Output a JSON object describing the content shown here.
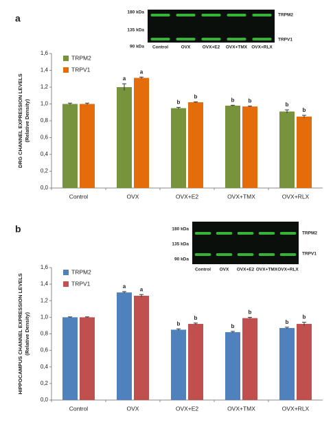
{
  "chart_data": [
    {
      "type": "bar",
      "panel_label": "a",
      "ylabel": [
        "DRG CHANNEL EXPRESSION LEVELS",
        "(Relative Density)"
      ],
      "categories": [
        "Control",
        "OVX",
        "OVX+E2",
        "OVX+TMX",
        "OVX+RLX"
      ],
      "series": [
        {
          "name": "TRPM2",
          "color": "#77933c",
          "values": [
            1.0,
            1.2,
            0.95,
            0.98,
            0.91
          ],
          "errors": [
            0.01,
            0.04,
            0.01,
            0.005,
            0.02
          ],
          "letters": [
            null,
            "a",
            "b",
            "b",
            "b"
          ]
        },
        {
          "name": "TRPV1",
          "color": "#e46c0a",
          "values": [
            1.0,
            1.31,
            1.02,
            0.97,
            0.85
          ],
          "errors": [
            0.01,
            0.01,
            0.005,
            0.005,
            0.015
          ],
          "letters": [
            null,
            "a",
            "b",
            "b",
            "b"
          ]
        }
      ],
      "ylim": [
        0,
        1.6
      ],
      "yticks": [
        {
          "value": 0,
          "label": "0,0"
        },
        {
          "value": 0.2,
          "label": "0,2"
        },
        {
          "value": 0.4,
          "label": "0,4"
        },
        {
          "value": 0.6,
          "label": "0,6"
        },
        {
          "value": 0.8,
          "label": "0,8"
        },
        {
          "value": 1.0,
          "label": "1,0"
        },
        {
          "value": 1.2,
          "label": "1,2"
        },
        {
          "value": 1.4,
          "label": "1,4"
        },
        {
          "value": 1.6,
          "label": "1,6"
        }
      ],
      "legend": "top-left",
      "blot": {
        "markers": [
          "180 kDa",
          "135 kDa",
          "90 kDa"
        ],
        "bands": [
          "TRPM2",
          "TRPV1"
        ],
        "lanes": [
          "Control",
          "OVX",
          "OVX+E2",
          "OVX+TMX",
          "OVX+RLX"
        ]
      }
    },
    {
      "type": "bar",
      "panel_label": "b",
      "ylabel": [
        "HIPPOCAMPUS CHANNEL EXPRESSION LEVELS",
        "(Relative Density)"
      ],
      "categories": [
        "Control",
        "OVX",
        "OVX+E2",
        "OVX+TMX",
        "OVX+RLX"
      ],
      "series": [
        {
          "name": "TRPM2",
          "color": "#4f81bd",
          "values": [
            1.0,
            1.3,
            0.85,
            0.82,
            0.87
          ],
          "errors": [
            0.005,
            0.01,
            0.01,
            0.01,
            0.01
          ],
          "letters": [
            null,
            "a",
            "b",
            "b",
            "b"
          ]
        },
        {
          "name": "TRPV1",
          "color": "#c0504d",
          "values": [
            1.0,
            1.26,
            0.92,
            0.99,
            0.92
          ],
          "errors": [
            0.005,
            0.015,
            0.01,
            0.01,
            0.02
          ],
          "letters": [
            null,
            "a",
            "b",
            "b",
            "b"
          ]
        }
      ],
      "ylim": [
        0,
        1.6
      ],
      "yticks": [
        {
          "value": 0,
          "label": "0,0"
        },
        {
          "value": 0.2,
          "label": "0,2"
        },
        {
          "value": 0.4,
          "label": "0,4"
        },
        {
          "value": 0.6,
          "label": "0,6"
        },
        {
          "value": 0.8,
          "label": "0,8"
        },
        {
          "value": 1.0,
          "label": "1,0"
        },
        {
          "value": 1.2,
          "label": "1,2"
        },
        {
          "value": 1.4,
          "label": "1,4"
        },
        {
          "value": 1.6,
          "label": "1,6"
        }
      ],
      "legend": "top-left",
      "blot": {
        "markers": [
          "180 kDa",
          "135 kDa",
          "90 kDa"
        ],
        "bands": [
          "TRPM2",
          "TRPV1"
        ],
        "lanes": [
          "Control",
          "OVX",
          "OVX+E2",
          "OVX+TMX",
          "OVX+RLX"
        ]
      }
    }
  ]
}
